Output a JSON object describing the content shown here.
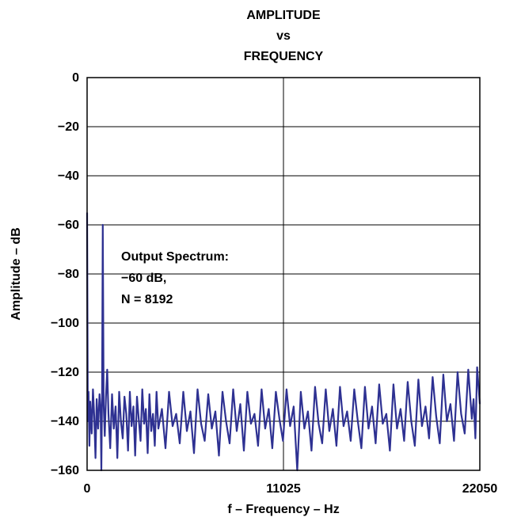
{
  "chart_data": {
    "type": "line",
    "title_lines": [
      "AMPLITUDE",
      "vs",
      "FREQUENCY"
    ],
    "xlabel": "f – Frequency – Hz",
    "ylabel": "Amplitude – dB",
    "xlim": [
      0,
      22050
    ],
    "ylim": [
      -160,
      0
    ],
    "x_ticks": [
      {
        "value": 0,
        "label": "0"
      },
      {
        "value": 11025,
        "label": "11025"
      },
      {
        "value": 22050,
        "label": "22050"
      }
    ],
    "y_ticks": [
      {
        "value": 0,
        "label": "0"
      },
      {
        "value": -20,
        "label": "−20"
      },
      {
        "value": -40,
        "label": "−40"
      },
      {
        "value": -60,
        "label": "−60"
      },
      {
        "value": -80,
        "label": "−80"
      },
      {
        "value": -100,
        "label": "−100"
      },
      {
        "value": -120,
        "label": "−120"
      },
      {
        "value": -140,
        "label": "−140"
      },
      {
        "value": -160,
        "label": "−160"
      }
    ],
    "grid": true,
    "line_color": "#2e3192",
    "annotation_lines": [
      "Output Spectrum:",
      "−60 dB,",
      "N = 8192"
    ],
    "series": [
      {
        "points": [
          [
            0,
            -55
          ],
          [
            40,
            -140
          ],
          [
            80,
            -128
          ],
          [
            130,
            -150
          ],
          [
            180,
            -132
          ],
          [
            260,
            -145
          ],
          [
            330,
            -127
          ],
          [
            400,
            -138
          ],
          [
            470,
            -155
          ],
          [
            540,
            -131
          ],
          [
            620,
            -143
          ],
          [
            700,
            -129
          ],
          [
            760,
            -136
          ],
          [
            800,
            -160
          ],
          [
            840,
            -129
          ],
          [
            880,
            -60
          ],
          [
            930,
            -133
          ],
          [
            990,
            -146
          ],
          [
            1060,
            -130
          ],
          [
            1130,
            -119
          ],
          [
            1200,
            -137
          ],
          [
            1300,
            -151
          ],
          [
            1400,
            -129
          ],
          [
            1500,
            -143
          ],
          [
            1600,
            -134
          ],
          [
            1700,
            -155
          ],
          [
            1800,
            -128
          ],
          [
            1900,
            -140
          ],
          [
            2000,
            -147
          ],
          [
            2100,
            -130
          ],
          [
            2200,
            -137
          ],
          [
            2300,
            -152
          ],
          [
            2400,
            -128
          ],
          [
            2500,
            -142
          ],
          [
            2600,
            -134
          ],
          [
            2700,
            -154
          ],
          [
            2800,
            -130
          ],
          [
            2900,
            -139
          ],
          [
            3000,
            -148
          ],
          [
            3100,
            -127
          ],
          [
            3200,
            -141
          ],
          [
            3300,
            -135
          ],
          [
            3400,
            -153
          ],
          [
            3500,
            -129
          ],
          [
            3600,
            -144
          ],
          [
            3700,
            -137
          ],
          [
            3800,
            -150
          ],
          [
            3900,
            -128
          ],
          [
            4000,
            -143
          ],
          [
            4200,
            -135
          ],
          [
            4400,
            -151
          ],
          [
            4600,
            -128
          ],
          [
            4800,
            -142
          ],
          [
            5000,
            -137
          ],
          [
            5200,
            -149
          ],
          [
            5400,
            -128
          ],
          [
            5600,
            -144
          ],
          [
            5800,
            -136
          ],
          [
            6000,
            -153
          ],
          [
            6200,
            -127
          ],
          [
            6400,
            -141
          ],
          [
            6600,
            -148
          ],
          [
            6800,
            -129
          ],
          [
            7000,
            -143
          ],
          [
            7200,
            -136
          ],
          [
            7400,
            -154
          ],
          [
            7600,
            -128
          ],
          [
            7800,
            -140
          ],
          [
            8000,
            -149
          ],
          [
            8200,
            -127
          ],
          [
            8400,
            -144
          ],
          [
            8600,
            -133
          ],
          [
            8800,
            -152
          ],
          [
            9000,
            -128
          ],
          [
            9200,
            -141
          ],
          [
            9400,
            -137
          ],
          [
            9600,
            -150
          ],
          [
            9800,
            -127
          ],
          [
            10000,
            -143
          ],
          [
            10200,
            -135
          ],
          [
            10400,
            -151
          ],
          [
            10600,
            -128
          ],
          [
            10800,
            -139
          ],
          [
            11000,
            -148
          ],
          [
            11200,
            -127
          ],
          [
            11400,
            -142
          ],
          [
            11600,
            -134
          ],
          [
            11800,
            -160
          ],
          [
            12000,
            -128
          ],
          [
            12200,
            -143
          ],
          [
            12400,
            -136
          ],
          [
            12600,
            -152
          ],
          [
            12800,
            -126
          ],
          [
            13000,
            -141
          ],
          [
            13200,
            -149
          ],
          [
            13400,
            -127
          ],
          [
            13600,
            -144
          ],
          [
            13800,
            -135
          ],
          [
            14000,
            -150
          ],
          [
            14200,
            -126
          ],
          [
            14400,
            -142
          ],
          [
            14600,
            -136
          ],
          [
            14800,
            -148
          ],
          [
            15000,
            -127
          ],
          [
            15200,
            -140
          ],
          [
            15400,
            -151
          ],
          [
            15600,
            -126
          ],
          [
            15800,
            -143
          ],
          [
            16000,
            -134
          ],
          [
            16200,
            -149
          ],
          [
            16400,
            -125
          ],
          [
            16600,
            -141
          ],
          [
            16800,
            -137
          ],
          [
            17000,
            -152
          ],
          [
            17200,
            -125
          ],
          [
            17400,
            -143
          ],
          [
            17600,
            -135
          ],
          [
            17800,
            -148
          ],
          [
            18000,
            -124
          ],
          [
            18200,
            -140
          ],
          [
            18400,
            -150
          ],
          [
            18600,
            -123
          ],
          [
            18800,
            -142
          ],
          [
            19000,
            -134
          ],
          [
            19200,
            -147
          ],
          [
            19400,
            -122
          ],
          [
            19600,
            -138
          ],
          [
            19800,
            -149
          ],
          [
            20000,
            -121
          ],
          [
            20200,
            -140
          ],
          [
            20400,
            -133
          ],
          [
            20600,
            -148
          ],
          [
            20800,
            -120
          ],
          [
            21000,
            -137
          ],
          [
            21200,
            -145
          ],
          [
            21400,
            -119
          ],
          [
            21600,
            -139
          ],
          [
            21700,
            -131
          ],
          [
            21800,
            -147
          ],
          [
            21900,
            -118
          ],
          [
            22050,
            -133
          ]
        ]
      }
    ]
  }
}
